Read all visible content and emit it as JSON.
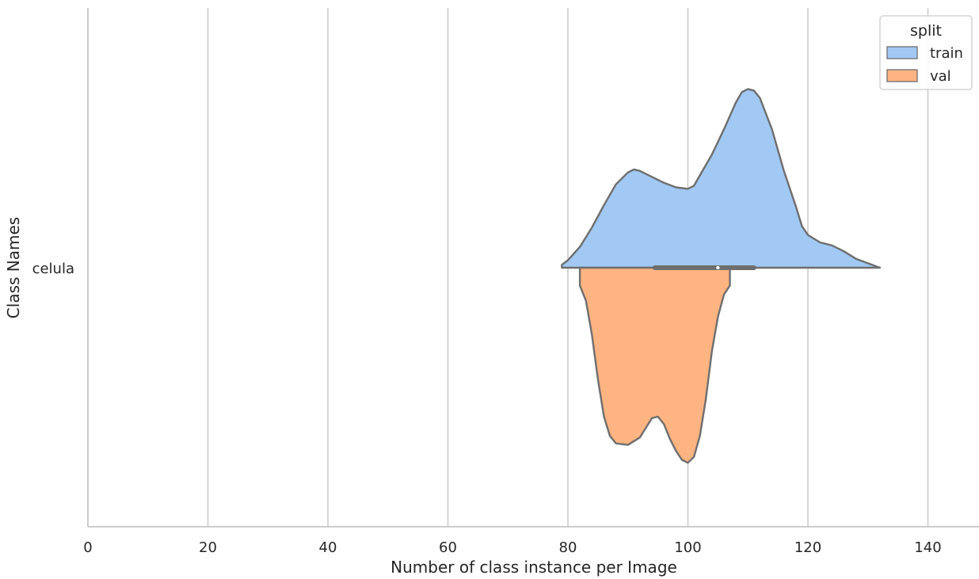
{
  "chart_data": {
    "type": "violin",
    "orientation": "horizontal",
    "split": true,
    "xlabel": "Number of class instance per Image",
    "ylabel": "Class Names",
    "xlim": [
      0,
      148
    ],
    "xticks": [
      0,
      20,
      40,
      60,
      80,
      100,
      120,
      140
    ],
    "categories": [
      "celula"
    ],
    "grid": "vertical",
    "legend": {
      "title": "split",
      "placement": "top-right",
      "entries": [
        "train",
        "val"
      ]
    },
    "series": [
      {
        "name": "train",
        "color": "#a1c9f4",
        "side": "upper",
        "range": [
          79,
          132
        ],
        "density": [
          [
            79,
            0.02
          ],
          [
            80,
            0.05
          ],
          [
            82,
            0.14
          ],
          [
            84,
            0.27
          ],
          [
            86,
            0.42
          ],
          [
            88,
            0.56
          ],
          [
            90,
            0.64
          ],
          [
            91,
            0.66
          ],
          [
            92,
            0.65
          ],
          [
            94,
            0.61
          ],
          [
            96,
            0.57
          ],
          [
            98,
            0.54
          ],
          [
            100,
            0.53
          ],
          [
            101,
            0.55
          ],
          [
            102,
            0.62
          ],
          [
            104,
            0.76
          ],
          [
            106,
            0.93
          ],
          [
            108,
            1.11
          ],
          [
            109,
            1.18
          ],
          [
            110,
            1.2
          ],
          [
            111,
            1.19
          ],
          [
            112,
            1.14
          ],
          [
            114,
            0.93
          ],
          [
            116,
            0.65
          ],
          [
            118,
            0.41
          ],
          [
            119,
            0.28
          ],
          [
            120,
            0.22
          ],
          [
            122,
            0.17
          ],
          [
            124,
            0.15
          ],
          [
            126,
            0.11
          ],
          [
            128,
            0.06
          ],
          [
            130,
            0.03
          ],
          [
            132,
            0.0
          ]
        ]
      },
      {
        "name": "val",
        "color": "#ffb482",
        "side": "lower",
        "range": [
          82,
          107
        ],
        "density": [
          [
            82,
            0.0
          ],
          [
            82,
            0.12
          ],
          [
            83,
            0.22
          ],
          [
            84,
            0.45
          ],
          [
            85,
            0.75
          ],
          [
            86,
            1.0
          ],
          [
            87,
            1.13
          ],
          [
            88,
            1.18
          ],
          [
            90,
            1.19
          ],
          [
            92,
            1.14
          ],
          [
            94,
            1.01
          ],
          [
            95,
            1.0
          ],
          [
            96,
            1.05
          ],
          [
            97,
            1.15
          ],
          [
            98,
            1.23
          ],
          [
            99,
            1.29
          ],
          [
            100,
            1.31
          ],
          [
            101,
            1.27
          ],
          [
            102,
            1.13
          ],
          [
            103,
            0.88
          ],
          [
            104,
            0.56
          ],
          [
            105,
            0.33
          ],
          [
            106,
            0.18
          ],
          [
            107,
            0.12
          ],
          [
            107,
            0.0
          ]
        ]
      }
    ],
    "inner_box": {
      "q1": 94.5,
      "median": 105,
      "q3": 111
    }
  }
}
